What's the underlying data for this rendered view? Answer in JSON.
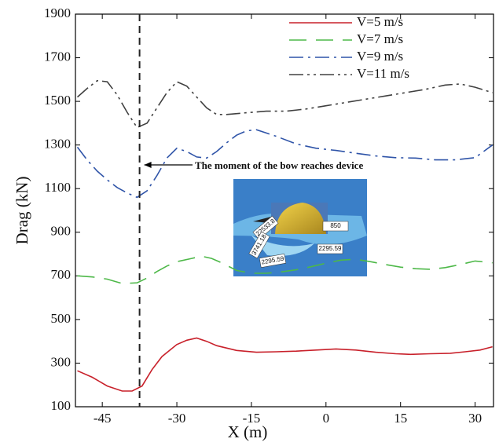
{
  "chart_data": {
    "type": "line",
    "xlabel": "X (m)",
    "ylabel": "Drag (kN)",
    "xlim": [
      -50.4,
      33.7
    ],
    "ylim": [
      100,
      1900
    ],
    "xticks": [
      -45,
      -30,
      -15,
      0,
      15,
      30
    ],
    "yticks": [
      100,
      300,
      500,
      700,
      900,
      1100,
      1300,
      1500,
      1700,
      1900
    ],
    "legend": "upper right",
    "reference_x": -37.5,
    "annotation": "The moment of the bow reaches  device",
    "inset_labels": [
      "22533.8",
      "850",
      "3741.18",
      "2295.59",
      "2295.59"
    ],
    "series": [
      {
        "name": "V=5 m/s",
        "color": "#c8202a",
        "style": "solid",
        "x": [
          -50,
          -47,
          -44,
          -41,
          -39,
          -37,
          -35,
          -33,
          -30,
          -28,
          -26,
          -24,
          -22,
          -18,
          -14,
          -10,
          -6,
          -2,
          2,
          6,
          10,
          14,
          17,
          21,
          25,
          28,
          31,
          33.5
        ],
        "values": [
          265,
          235,
          195,
          172,
          172,
          195,
          270,
          330,
          385,
          405,
          415,
          400,
          380,
          358,
          350,
          352,
          355,
          360,
          365,
          360,
          350,
          343,
          340,
          343,
          345,
          352,
          360,
          375
        ]
      },
      {
        "name": "V=7 m/s",
        "color": "#4db848",
        "style": "dashed",
        "x": [
          -50,
          -47,
          -44,
          -41,
          -38,
          -36,
          -34,
          -32,
          -30,
          -27,
          -25,
          -23,
          -21,
          -18,
          -15,
          -12,
          -9,
          -6,
          -3,
          0,
          3,
          6,
          9,
          12,
          15,
          18,
          21,
          24,
          27,
          30,
          33.5
        ],
        "values": [
          700,
          695,
          685,
          665,
          668,
          690,
          720,
          745,
          765,
          780,
          790,
          780,
          760,
          725,
          712,
          712,
          718,
          728,
          742,
          758,
          772,
          776,
          765,
          752,
          740,
          733,
          730,
          738,
          752,
          768,
          760
        ]
      },
      {
        "name": "V=9 m/s",
        "color": "#2f54a8",
        "style": "dashdot",
        "x": [
          -50,
          -48,
          -46,
          -44,
          -42,
          -40,
          -38,
          -36,
          -34,
          -32,
          -30,
          -28,
          -26,
          -24,
          -22,
          -20,
          -18,
          -16,
          -14,
          -12,
          -10,
          -6,
          -2,
          2,
          6,
          10,
          14,
          18,
          22,
          26,
          30,
          33.5
        ],
        "values": [
          1290,
          1230,
          1180,
          1140,
          1105,
          1080,
          1060,
          1090,
          1160,
          1240,
          1285,
          1270,
          1245,
          1240,
          1270,
          1310,
          1345,
          1365,
          1370,
          1355,
          1340,
          1305,
          1285,
          1275,
          1262,
          1250,
          1242,
          1240,
          1232,
          1232,
          1242,
          1300
        ]
      },
      {
        "name": "V=11 m/s",
        "color": "#404040",
        "style": "dashdotdot",
        "x": [
          -50,
          -48,
          -46,
          -44,
          -42,
          -40,
          -38,
          -36,
          -34,
          -32,
          -30,
          -28,
          -26,
          -24,
          -22,
          -20,
          -16,
          -12,
          -8,
          -4,
          0,
          4,
          8,
          12,
          16,
          20,
          24,
          27,
          30,
          33.5
        ],
        "values": [
          1520,
          1560,
          1595,
          1590,
          1530,
          1450,
          1380,
          1400,
          1470,
          1540,
          1590,
          1570,
          1520,
          1470,
          1440,
          1440,
          1448,
          1455,
          1455,
          1465,
          1480,
          1495,
          1510,
          1525,
          1540,
          1555,
          1575,
          1580,
          1565,
          1540
        ]
      }
    ]
  }
}
